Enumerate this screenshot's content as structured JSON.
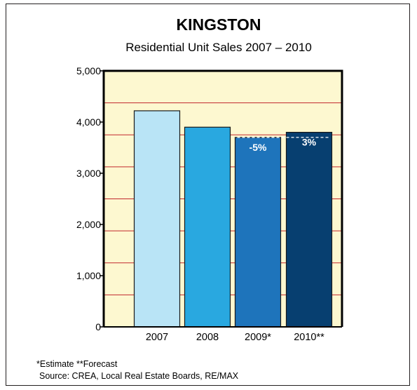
{
  "chart_data": {
    "type": "bar",
    "title": "KINGSTON",
    "subtitle": "Residential Unit Sales 2007 – 2010",
    "categories": [
      "2007",
      "2008",
      "2009*",
      "2010**"
    ],
    "values": [
      4220,
      3900,
      3700,
      3800
    ],
    "bar_colors": [
      "#b9e4f6",
      "#29a8e0",
      "#1e74bb",
      "#073f70"
    ],
    "bar_labels": [
      "",
      "",
      "-5%",
      "3%"
    ],
    "y_ticks": [
      0,
      1000,
      2000,
      3000,
      4000,
      5000
    ],
    "y_tick_labels": [
      "0",
      "1,000",
      "2,000",
      "3,000",
      "4,000",
      "5,000"
    ],
    "ylim": [
      0,
      5000
    ],
    "reference_line": {
      "value": 3700,
      "style": "dashed",
      "color": "#ffffff"
    },
    "plot_background": "#fdf8d0",
    "grid_color": "#c1272d",
    "grid": true,
    "legend": false,
    "xlabel": "",
    "ylabel": ""
  },
  "footnotes": {
    "estimate_note": "*Estimate  **Forecast",
    "source": "Source: CREA, Local Real Estate Boards, RE/MAX"
  }
}
